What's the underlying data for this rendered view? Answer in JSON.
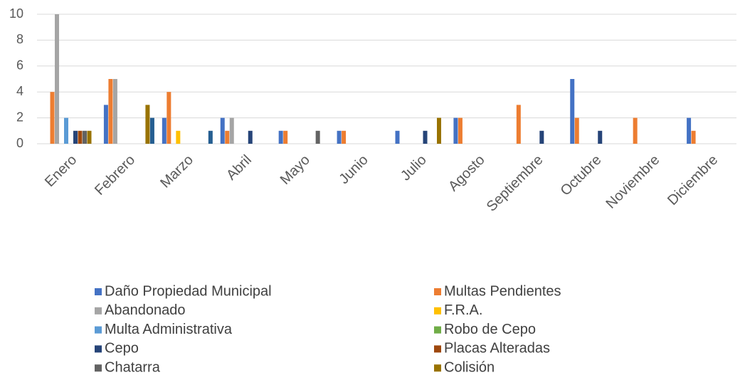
{
  "chart_data": {
    "type": "bar",
    "categories": [
      "Enero",
      "Febrero",
      "Marzo",
      "Abril",
      "Mayo",
      "Junio",
      "Julio",
      "Agosto",
      "Septiembre",
      "Octubre",
      "Noviembre",
      "Diciembre"
    ],
    "ylim": [
      0,
      10
    ],
    "yticks": [
      0,
      2,
      4,
      6,
      8,
      10
    ],
    "grid": true,
    "series": [
      {
        "name": "Daño Propiedad Municipal",
        "color": "#4472c4",
        "values": [
          0,
          3,
          2,
          2,
          1,
          1,
          1,
          2,
          0,
          5,
          0,
          2
        ]
      },
      {
        "name": "Multas Pendientes",
        "color": "#ed7d31",
        "values": [
          4,
          5,
          4,
          1,
          1,
          1,
          0,
          2,
          3,
          2,
          2,
          1
        ]
      },
      {
        "name": "Abandonado",
        "color": "#a5a5a5",
        "values": [
          10,
          5,
          0,
          2,
          0,
          0,
          0,
          0,
          0,
          0,
          0,
          0
        ]
      },
      {
        "name": "F.R.A.",
        "color": "#ffc000",
        "values": [
          0,
          0,
          1,
          0,
          0,
          0,
          0,
          0,
          0,
          0,
          0,
          0
        ]
      },
      {
        "name": "Multa Administrativa",
        "color": "#5b9bd5",
        "values": [
          2,
          0,
          0,
          0,
          0,
          0,
          0,
          0,
          0,
          0,
          0,
          0
        ]
      },
      {
        "name": "Robo de Cepo",
        "color": "#70ad47",
        "values": [
          0,
          0,
          0,
          0,
          0,
          0,
          0,
          0,
          0,
          0,
          0,
          0
        ]
      },
      {
        "name": "Cepo",
        "color": "#264478",
        "values": [
          1,
          0,
          0,
          1,
          0,
          0,
          1,
          0,
          1,
          1,
          0,
          0
        ]
      },
      {
        "name": "Placas Alteradas",
        "color": "#9e480e",
        "values": [
          1,
          0,
          0,
          0,
          0,
          0,
          0,
          0,
          0,
          0,
          0,
          0
        ]
      },
      {
        "name": "Chatarra",
        "color": "#636363",
        "values": [
          1,
          0,
          0,
          0,
          1,
          0,
          0,
          0,
          0,
          0,
          0,
          0
        ]
      },
      {
        "name": "Colisión",
        "color": "#997300",
        "values": [
          1,
          3,
          0,
          0,
          0,
          0,
          2,
          0,
          0,
          0,
          0,
          0
        ]
      },
      {
        "name": null,
        "color": "#255e91",
        "values": [
          0,
          2,
          1,
          0,
          0,
          0,
          0,
          0,
          0,
          0,
          0,
          0
        ]
      }
    ]
  }
}
